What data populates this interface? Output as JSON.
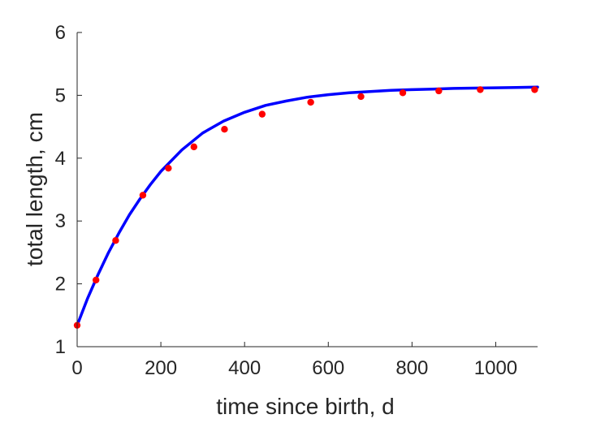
{
  "chart_data": {
    "type": "scatter",
    "title": "",
    "xlabel": "time since birth, d",
    "ylabel": "total length, cm",
    "xlim": [
      0,
      1100
    ],
    "ylim": [
      1,
      6
    ],
    "xticks": [
      0,
      200,
      400,
      600,
      800,
      1000
    ],
    "yticks": [
      1,
      2,
      3,
      4,
      5,
      6
    ],
    "grid": false,
    "legend": "none",
    "series": [
      {
        "kind": "points",
        "color": "#ff0000",
        "x": [
          0,
          45,
          92,
          157,
          218,
          279,
          352,
          442,
          558,
          678,
          778,
          864,
          963,
          1093
        ],
        "y": [
          1.34,
          2.06,
          2.69,
          3.41,
          3.84,
          4.18,
          4.46,
          4.7,
          4.89,
          4.98,
          5.04,
          5.07,
          5.09,
          5.09
        ]
      },
      {
        "kind": "fit-line",
        "color": "#0000ff",
        "x": [
          0,
          25,
          50,
          75,
          100,
          125,
          150,
          175,
          200,
          250,
          300,
          350,
          400,
          450,
          500,
          550,
          600,
          650,
          700,
          750,
          800,
          850,
          900,
          950,
          1000,
          1050,
          1100
        ],
        "y": [
          1.34,
          1.77,
          2.15,
          2.5,
          2.81,
          3.1,
          3.35,
          3.58,
          3.79,
          4.13,
          4.4,
          4.59,
          4.73,
          4.84,
          4.91,
          4.97,
          5.01,
          5.04,
          5.06,
          5.08,
          5.09,
          5.1,
          5.11,
          5.115,
          5.12,
          5.125,
          5.13
        ]
      }
    ]
  }
}
